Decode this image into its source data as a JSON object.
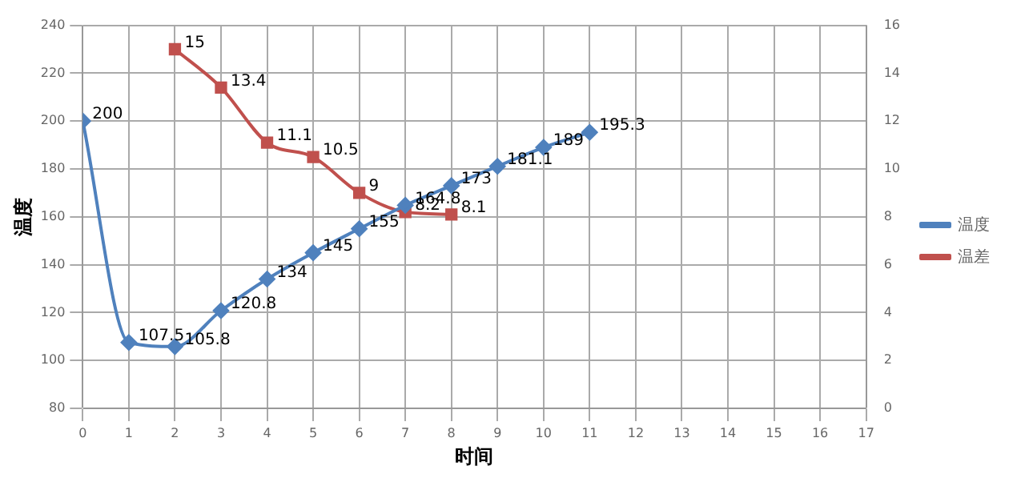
{
  "chart_data": {
    "type": "line",
    "xlabel": "时间",
    "ylabel": "温度",
    "xlim": [
      0,
      17
    ],
    "xticks": [
      0,
      1,
      2,
      3,
      4,
      5,
      6,
      7,
      8,
      9,
      10,
      11,
      12,
      13,
      14,
      15,
      16,
      17
    ],
    "ylim": [
      80,
      240
    ],
    "yticks": [
      80,
      100,
      120,
      140,
      160,
      180,
      200,
      220,
      240
    ],
    "y2lim": [
      0,
      16
    ],
    "y2ticks": [
      0,
      2,
      4,
      6,
      8,
      10,
      12,
      14,
      16
    ],
    "series": [
      {
        "name": "温度",
        "color": "#4f81bd",
        "marker": "diamond",
        "x": [
          0,
          1,
          2,
          3,
          4,
          5,
          6,
          7,
          8,
          9,
          10,
          11
        ],
        "values": [
          200,
          107.5,
          105.8,
          120.8,
          134,
          145,
          155,
          164.8,
          173,
          181.1,
          189,
          195.3
        ]
      },
      {
        "name": "温差",
        "color": "#c0504d",
        "marker": "square",
        "axis": "y2",
        "x": [
          2,
          3,
          4,
          5,
          6,
          7,
          8
        ],
        "values": [
          15,
          13.4,
          11.1,
          10.5,
          9,
          8.2,
          8.1
        ]
      }
    ],
    "data_labels": true,
    "grid": true,
    "legend": "right"
  }
}
